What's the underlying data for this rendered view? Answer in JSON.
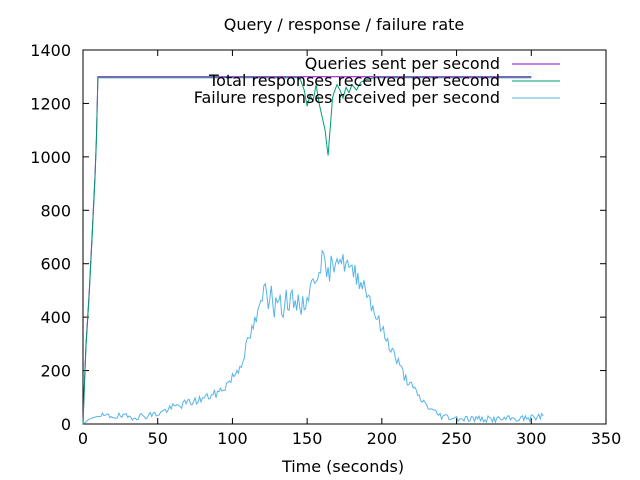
{
  "chart_data": {
    "type": "line",
    "title": "Query / response / failure rate",
    "xlabel": "Time (seconds)",
    "ylabel": "",
    "xlim": [
      0,
      350
    ],
    "ylim": [
      0,
      1400
    ],
    "x_ticks": [
      0,
      50,
      100,
      150,
      200,
      250,
      300,
      350
    ],
    "y_ticks": [
      0,
      200,
      400,
      600,
      800,
      1000,
      1200,
      1400
    ],
    "grid": false,
    "legend_position": "top-right",
    "series": [
      {
        "name": "Queries sent per second",
        "color": "#9400d3",
        "points": [
          [
            0,
            0
          ],
          [
            1,
            160
          ],
          [
            2,
            300
          ],
          [
            4,
            480
          ],
          [
            6,
            700
          ],
          [
            8,
            930
          ],
          [
            9,
            1070
          ],
          [
            10,
            1300
          ],
          [
            150,
            1300
          ],
          [
            200,
            1300
          ],
          [
            300,
            1300
          ]
        ]
      },
      {
        "name": "Total responses received per second",
        "color": "#009e73",
        "points": [
          [
            0,
            0
          ],
          [
            1,
            150
          ],
          [
            2,
            290
          ],
          [
            4,
            470
          ],
          [
            6,
            690
          ],
          [
            8,
            920
          ],
          [
            9,
            1060
          ],
          [
            10,
            1296
          ],
          [
            145,
            1296
          ],
          [
            148,
            1250
          ],
          [
            150,
            1190
          ],
          [
            152,
            1230
          ],
          [
            154,
            1210
          ],
          [
            156,
            1270
          ],
          [
            158,
            1200
          ],
          [
            160,
            1150
          ],
          [
            162,
            1100
          ],
          [
            163,
            1050
          ],
          [
            164,
            1005
          ],
          [
            165,
            1080
          ],
          [
            166,
            1150
          ],
          [
            167,
            1220
          ],
          [
            168,
            1240
          ],
          [
            170,
            1270
          ],
          [
            172,
            1250
          ],
          [
            174,
            1220
          ],
          [
            176,
            1260
          ],
          [
            178,
            1240
          ],
          [
            180,
            1270
          ],
          [
            183,
            1250
          ],
          [
            186,
            1280
          ],
          [
            190,
            1290
          ],
          [
            195,
            1296
          ],
          [
            300,
            1296
          ]
        ]
      },
      {
        "name": "Failure responses received per second",
        "color": "#56b4e9",
        "points": [
          [
            0,
            0
          ],
          [
            2,
            8
          ],
          [
            4,
            18
          ],
          [
            6,
            22
          ],
          [
            8,
            26
          ],
          [
            10,
            28
          ],
          [
            20,
            30
          ],
          [
            30,
            26
          ],
          [
            40,
            30
          ],
          [
            50,
            38
          ],
          [
            55,
            50
          ],
          [
            60,
            62
          ],
          [
            65,
            70
          ],
          [
            70,
            80
          ],
          [
            75,
            85
          ],
          [
            80,
            95
          ],
          [
            85,
            105
          ],
          [
            90,
            115
          ],
          [
            95,
            140
          ],
          [
            100,
            175
          ],
          [
            105,
            215
          ],
          [
            110,
            300
          ],
          [
            115,
            380
          ],
          [
            118,
            420
          ],
          [
            120,
            470
          ],
          [
            122,
            520
          ],
          [
            124,
            460
          ],
          [
            126,
            520
          ],
          [
            128,
            430
          ],
          [
            130,
            470
          ],
          [
            132,
            450
          ],
          [
            134,
            430
          ],
          [
            136,
            480
          ],
          [
            138,
            440
          ],
          [
            140,
            470
          ],
          [
            142,
            430
          ],
          [
            144,
            470
          ],
          [
            146,
            440
          ],
          [
            148,
            450
          ],
          [
            150,
            470
          ],
          [
            152,
            500
          ],
          [
            154,
            530
          ],
          [
            156,
            560
          ],
          [
            158,
            590
          ],
          [
            160,
            620
          ],
          [
            162,
            580
          ],
          [
            164,
            550
          ],
          [
            166,
            590
          ],
          [
            168,
            610
          ],
          [
            170,
            640
          ],
          [
            172,
            620
          ],
          [
            174,
            600
          ],
          [
            176,
            610
          ],
          [
            178,
            580
          ],
          [
            180,
            560
          ],
          [
            182,
            570
          ],
          [
            184,
            550
          ],
          [
            186,
            540
          ],
          [
            188,
            520
          ],
          [
            190,
            500
          ],
          [
            192,
            470
          ],
          [
            194,
            440
          ],
          [
            196,
            410
          ],
          [
            198,
            380
          ],
          [
            200,
            350
          ],
          [
            205,
            300
          ],
          [
            210,
            240
          ],
          [
            215,
            180
          ],
          [
            220,
            140
          ],
          [
            225,
            100
          ],
          [
            230,
            70
          ],
          [
            235,
            45
          ],
          [
            240,
            30
          ],
          [
            250,
            22
          ],
          [
            260,
            20
          ],
          [
            270,
            18
          ],
          [
            280,
            18
          ],
          [
            290,
            20
          ],
          [
            300,
            22
          ],
          [
            305,
            28
          ],
          [
            308,
            30
          ]
        ]
      }
    ]
  }
}
